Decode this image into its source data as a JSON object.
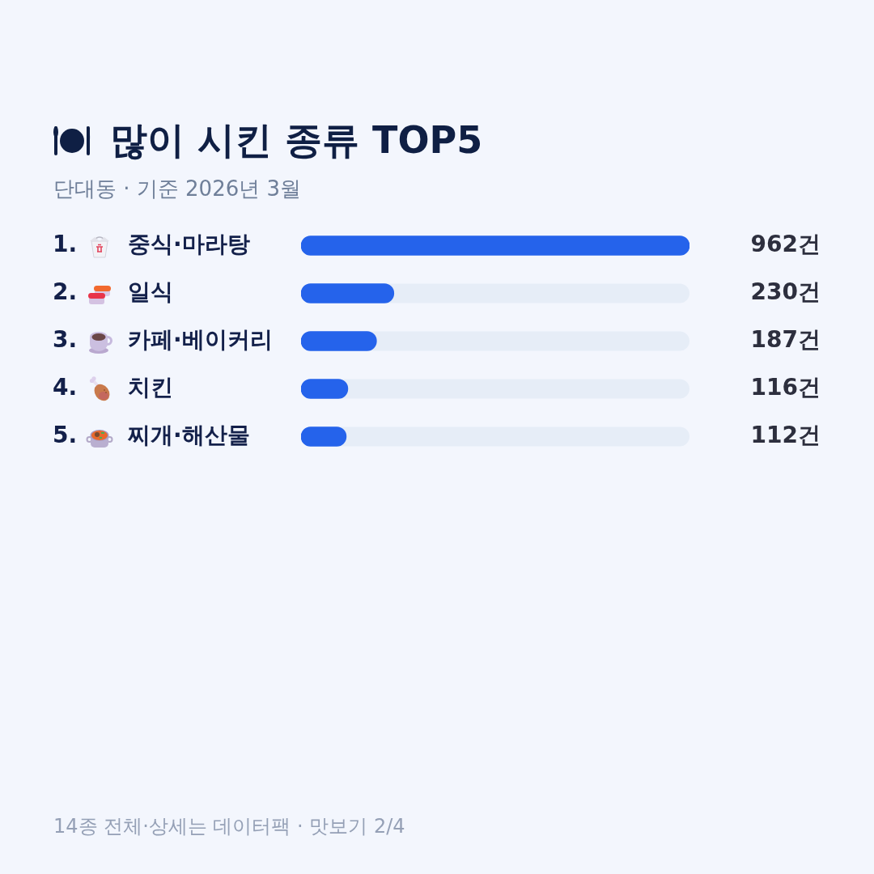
{
  "chart_data": {
    "type": "bar",
    "orientation": "horizontal",
    "title": "많이 시킨 종류 TOP5",
    "subtitle": "단대동 · 기준 2026년 3월",
    "categories": [
      "중식·마라탕",
      "일식",
      "카페·베이커리",
      "치킨",
      "찌개·해산물"
    ],
    "values": [
      962,
      230,
      187,
      116,
      112
    ],
    "value_labels": [
      "962건",
      "230건",
      "187건",
      "116건",
      "112건"
    ],
    "color": "#2563eb",
    "xlim": [
      0,
      962
    ],
    "annotations": [
      "1.",
      "2.",
      "3.",
      "4.",
      "5.",
      "14종 전체·상세는 데이터팩 · 맛보기 2/4"
    ]
  }
}
